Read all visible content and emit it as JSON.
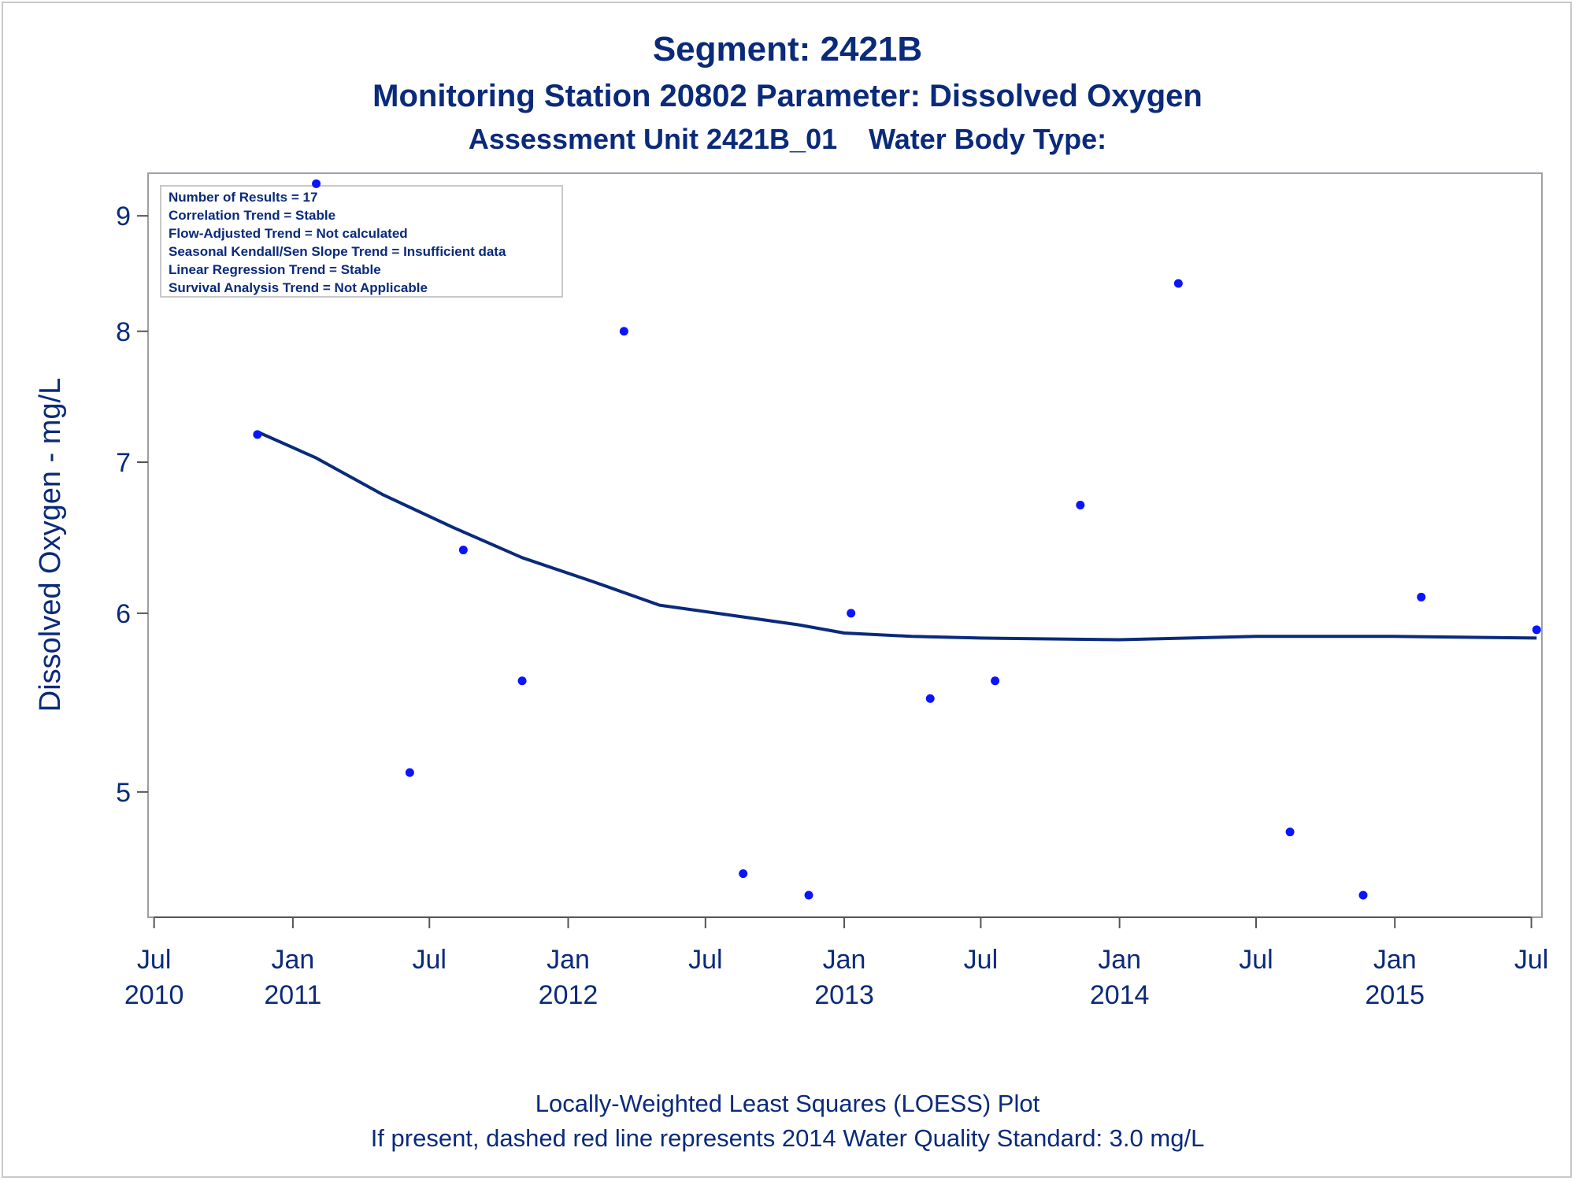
{
  "chart_data": {
    "type": "scatter",
    "title": "Segment: 2421B",
    "subtitle": "Monitoring Station 20802 Parameter: Dissolved Oxygen",
    "subtitle2": "Assessment Unit 2421B_01    Water Body Type:",
    "ylabel": "Dissolved Oxygen - mg/L",
    "xlabel": "",
    "footnote1": "Locally-Weighted Least Squares (LOESS) Plot",
    "footnote2": "If present, dashed red line represents 2014 Water Quality Standard: 3.0 mg/L",
    "y_scale": "log",
    "ylim": [
      4.4,
      9.4
    ],
    "xlim": [
      "2010-06-23",
      "2015-07-15"
    ],
    "y_ticks": [
      5,
      6,
      7,
      8,
      9
    ],
    "x_ticks": [
      {
        "date": "2010-07-01",
        "line1": "Jul",
        "line2": "2010"
      },
      {
        "date": "2011-01-01",
        "line1": "Jan",
        "line2": "2011"
      },
      {
        "date": "2011-07-01",
        "line1": "Jul",
        "line2": ""
      },
      {
        "date": "2012-01-01",
        "line1": "Jan",
        "line2": "2012"
      },
      {
        "date": "2012-07-01",
        "line1": "Jul",
        "line2": ""
      },
      {
        "date": "2013-01-01",
        "line1": "Jan",
        "line2": "2013"
      },
      {
        "date": "2013-07-01",
        "line1": "Jul",
        "line2": ""
      },
      {
        "date": "2014-01-01",
        "line1": "Jan",
        "line2": "2014"
      },
      {
        "date": "2014-07-01",
        "line1": "Jul",
        "line2": ""
      },
      {
        "date": "2015-01-01",
        "line1": "Jan",
        "line2": "2015"
      },
      {
        "date": "2015-07-01",
        "line1": "Jul",
        "line2": ""
      }
    ],
    "grid": false,
    "series": [
      {
        "kind": "points",
        "color": "#0a14ff",
        "points": [
          {
            "x": "2010-11-15",
            "y": 7.2
          },
          {
            "x": "2011-02-01",
            "y": 9.3
          },
          {
            "x": "2011-06-05",
            "y": 5.1
          },
          {
            "x": "2011-08-15",
            "y": 6.4
          },
          {
            "x": "2011-11-01",
            "y": 5.6
          },
          {
            "x": "2012-03-15",
            "y": 8.0
          },
          {
            "x": "2012-08-20",
            "y": 4.6
          },
          {
            "x": "2012-11-15",
            "y": 4.5
          },
          {
            "x": "2013-01-10",
            "y": 6.0
          },
          {
            "x": "2013-04-25",
            "y": 5.5
          },
          {
            "x": "2013-07-20",
            "y": 5.6
          },
          {
            "x": "2013-11-10",
            "y": 6.7
          },
          {
            "x": "2014-03-20",
            "y": 8.4
          },
          {
            "x": "2014-08-15",
            "y": 4.8
          },
          {
            "x": "2014-11-20",
            "y": 4.5
          },
          {
            "x": "2015-02-05",
            "y": 6.1
          },
          {
            "x": "2015-07-08",
            "y": 5.9
          }
        ]
      },
      {
        "kind": "loess",
        "color": "#0a2a7a",
        "points": [
          {
            "x": "2010-11-15",
            "y": 7.22
          },
          {
            "x": "2011-02-01",
            "y": 7.03
          },
          {
            "x": "2011-05-01",
            "y": 6.77
          },
          {
            "x": "2011-08-01",
            "y": 6.55
          },
          {
            "x": "2011-11-01",
            "y": 6.35
          },
          {
            "x": "2012-02-01",
            "y": 6.2
          },
          {
            "x": "2012-05-01",
            "y": 6.05
          },
          {
            "x": "2012-08-01",
            "y": 5.99
          },
          {
            "x": "2012-11-01",
            "y": 5.93
          },
          {
            "x": "2013-01-01",
            "y": 5.88
          },
          {
            "x": "2013-04-01",
            "y": 5.86
          },
          {
            "x": "2013-07-01",
            "y": 5.85
          },
          {
            "x": "2014-01-01",
            "y": 5.84
          },
          {
            "x": "2014-07-01",
            "y": 5.86
          },
          {
            "x": "2015-01-01",
            "y": 5.86
          },
          {
            "x": "2015-07-08",
            "y": 5.85
          }
        ]
      }
    ]
  },
  "stats_box": [
    "Number of Results = 17",
    "Correlation Trend = Stable",
    "Flow-Adjusted Trend = Not calculated",
    "Seasonal Kendall/Sen Slope Trend = Insufficient data",
    "Linear Regression Trend = Stable",
    "Survival Analysis Trend = Not Applicable"
  ]
}
